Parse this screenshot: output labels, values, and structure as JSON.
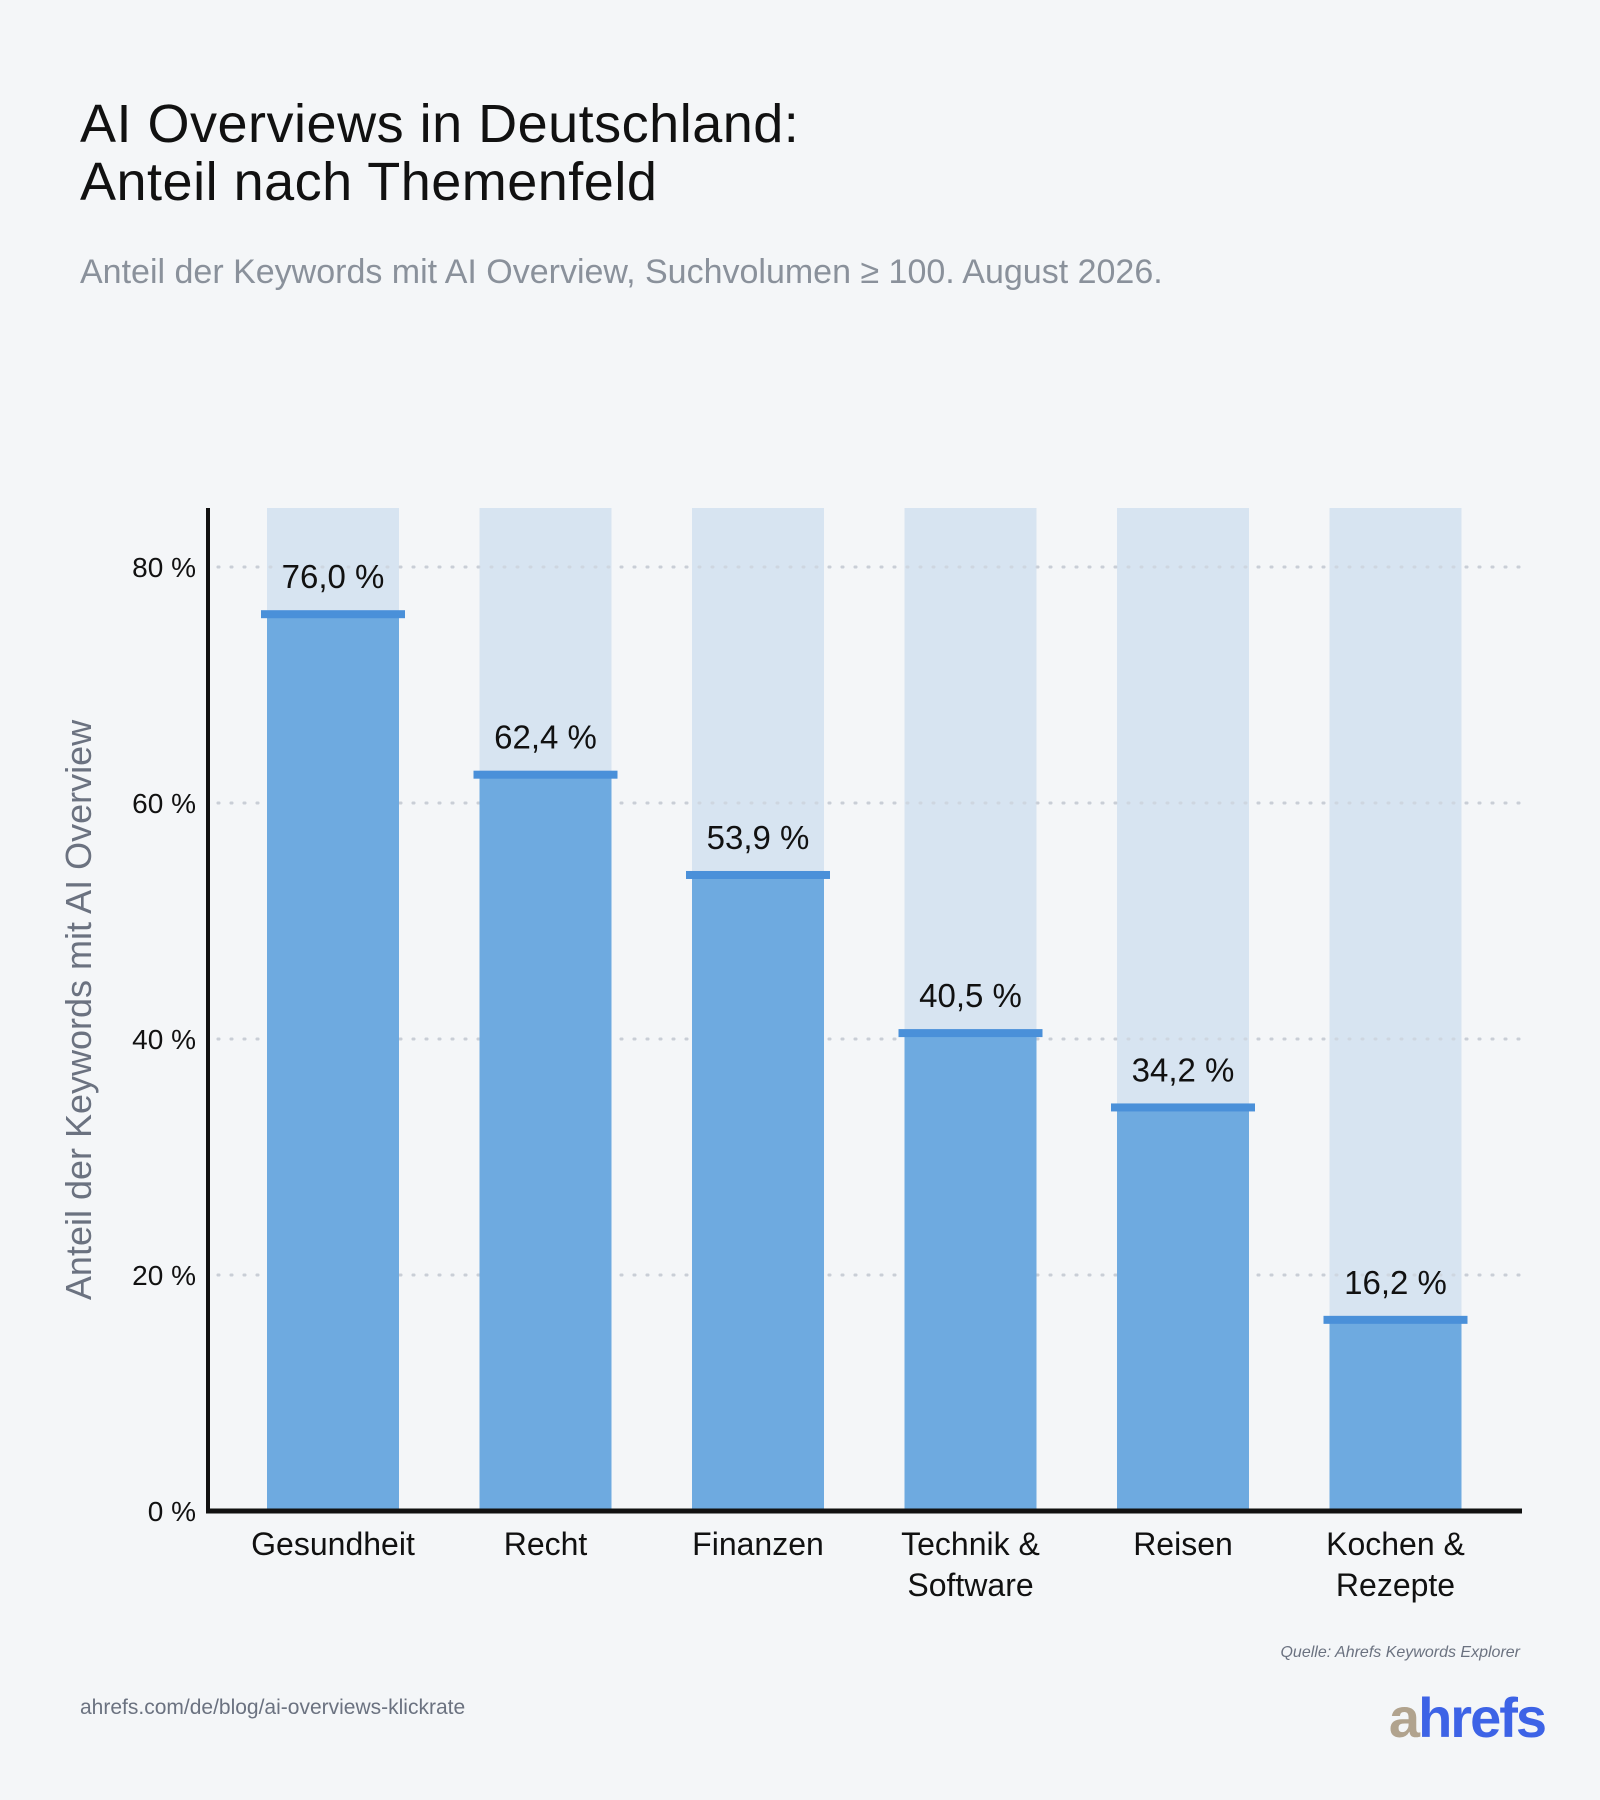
{
  "header": {
    "title_line1": "AI Overviews in Deutschland:",
    "title_line2": "Anteil nach Themenfeld",
    "subtitle": "Anteil der Keywords mit AI Overview, Suchvolumen ≥ 100. August 2026."
  },
  "chart_data": {
    "type": "bar",
    "ylabel": "Anteil der Keywords mit AI Overview",
    "xlabel": "",
    "ylim": [
      0,
      85
    ],
    "yticks": [
      0,
      20,
      40,
      60,
      80
    ],
    "ytick_labels": [
      "0 %",
      "20 %",
      "40 %",
      "60 %",
      "80 %"
    ],
    "grid": "horizontal dotted",
    "categories": [
      [
        "Gesundheit"
      ],
      [
        "Recht"
      ],
      [
        "Finanzen"
      ],
      [
        "Technik &",
        "Software"
      ],
      [
        "Reisen"
      ],
      [
        "Kochen &",
        "Rezepte"
      ]
    ],
    "values": [
      76.0,
      62.4,
      53.9,
      40.5,
      34.2,
      16.2
    ],
    "value_labels": [
      "76,0 %",
      "62,4 %",
      "53,9 %",
      "40,5 %",
      "34,2 %",
      "16,2 %"
    ],
    "colors": {
      "bar": "#6eaae0",
      "bar_cap": "#4a90d9",
      "background_track": "#d7e4f1",
      "axis": "#111111",
      "grid": "#c9ced6"
    }
  },
  "footer": {
    "source": "Quelle: Ahrefs Keywords Explorer",
    "url": "ahrefs.com/de/blog/ai-overviews-klickrate",
    "logo_part1": "a",
    "logo_part2": "hrefs"
  }
}
